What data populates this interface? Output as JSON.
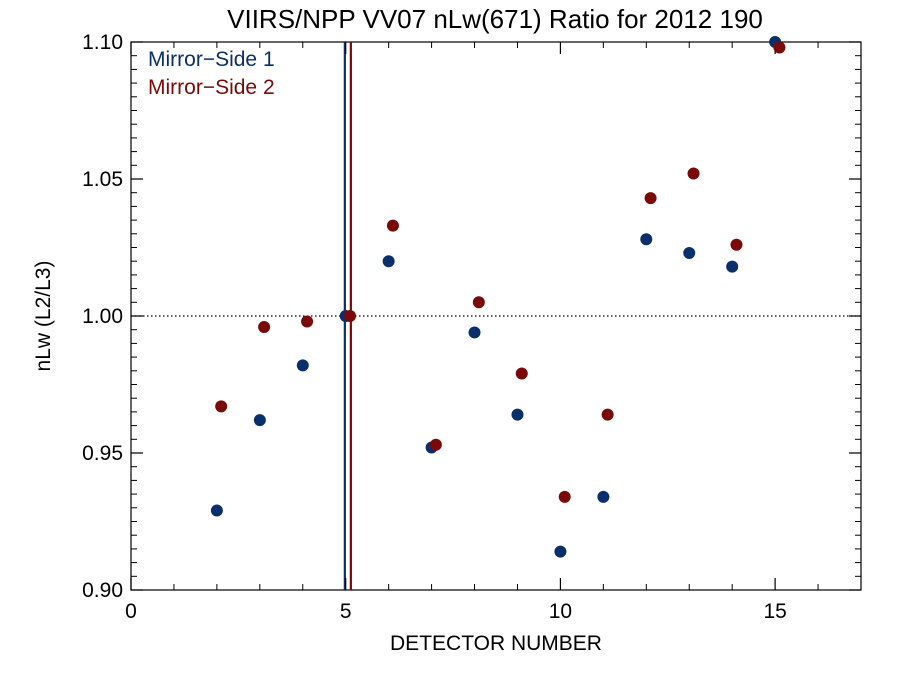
{
  "chart_data": {
    "type": "scatter",
    "title": "VIIRS/NPP VV07 nLw(671) Ratio for 2012 190",
    "xlabel": "DETECTOR NUMBER",
    "ylabel": "nLw (L2/L3)",
    "xlim": [
      0,
      17
    ],
    "ylim": [
      0.9,
      1.1
    ],
    "xticks": [
      0,
      5,
      10,
      15
    ],
    "xtick_labels": [
      "0",
      "5",
      "10",
      "15"
    ],
    "yticks": [
      0.9,
      0.95,
      1.0,
      1.05,
      1.1
    ],
    "ytick_labels": [
      "0.90",
      "0.95",
      "1.00",
      "1.05",
      "1.10"
    ],
    "grid": false,
    "legend_position": "top-left",
    "reference_hline": 1.0,
    "reference_vlines": [
      {
        "x": 4.98,
        "color": "#0b2f6b"
      },
      {
        "x": 5.12,
        "color": "#7a0a0a"
      }
    ],
    "series": [
      {
        "name": "Mirror−Side 1",
        "color": "#0b2f6b",
        "x": [
          2,
          3,
          4,
          5,
          6,
          7,
          8,
          9,
          10,
          11,
          12,
          13,
          14,
          15
        ],
        "y": [
          0.929,
          0.962,
          0.982,
          1.0,
          1.02,
          0.952,
          0.994,
          0.964,
          0.914,
          0.934,
          1.028,
          1.023,
          1.018,
          1.1
        ]
      },
      {
        "name": "Mirror−Side 2",
        "color": "#7a0a0a",
        "x": [
          2.1,
          3.1,
          4.1,
          5.1,
          6.1,
          7.1,
          8.1,
          9.1,
          10.1,
          11.1,
          12.1,
          13.1,
          14.1,
          15.1
        ],
        "y": [
          0.967,
          0.996,
          0.998,
          1.0,
          1.033,
          0.953,
          1.005,
          0.979,
          0.934,
          0.964,
          1.043,
          1.052,
          1.026,
          1.098
        ]
      }
    ]
  }
}
